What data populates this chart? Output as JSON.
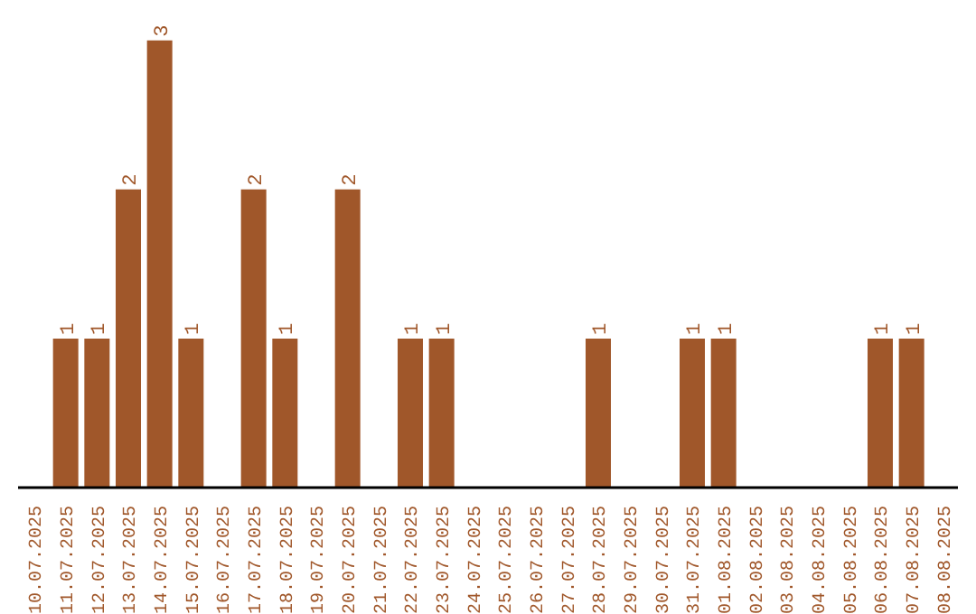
{
  "chart_data": {
    "type": "bar",
    "categories": [
      "10.07.2025",
      "11.07.2025",
      "12.07.2025",
      "13.07.2025",
      "14.07.2025",
      "15.07.2025",
      "16.07.2025",
      "17.07.2025",
      "18.07.2025",
      "19.07.2025",
      "20.07.2025",
      "21.07.2025",
      "22.07.2025",
      "23.07.2025",
      "24.07.2025",
      "25.07.2025",
      "26.07.2025",
      "27.07.2025",
      "28.07.2025",
      "29.07.2025",
      "30.07.2025",
      "31.07.2025",
      "01.08.2025",
      "02.08.2025",
      "03.08.2025",
      "04.08.2025",
      "05.08.2025",
      "06.08.2025",
      "07.08.2025",
      "08.08.2025"
    ],
    "values": [
      0,
      1,
      1,
      2,
      3,
      1,
      0,
      2,
      1,
      0,
      2,
      0,
      1,
      1,
      0,
      0,
      0,
      0,
      1,
      0,
      0,
      1,
      1,
      0,
      0,
      0,
      0,
      1,
      1,
      0
    ],
    "value_labels": [
      null,
      "1",
      "1",
      "2",
      "3",
      "1",
      null,
      "2",
      "1",
      null,
      "2",
      null,
      "1",
      "1",
      null,
      null,
      null,
      null,
      "1",
      null,
      null,
      "1",
      "1",
      null,
      null,
      null,
      null,
      "1",
      "1",
      null
    ],
    "color": "#a0572a"
  }
}
